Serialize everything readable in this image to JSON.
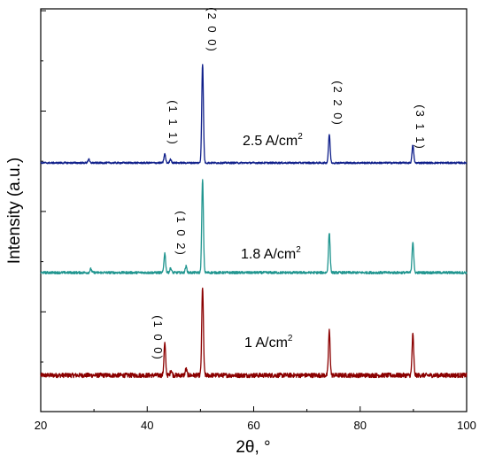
{
  "chart_data": {
    "type": "line",
    "xlabel": "2θ, °",
    "ylabel": "Intensity (a.u.)",
    "xlim": [
      20,
      100
    ],
    "xticks": [
      20,
      40,
      60,
      80,
      100
    ],
    "grid": false,
    "legend": "none",
    "y_tick_count": 8,
    "series": [
      {
        "name": "1 A/cm",
        "name_superscript": "2",
        "color": "#8b0000",
        "offset": 0,
        "peaks": [
          {
            "x": 43.3,
            "y": 36,
            "hkl": "(1 0 0)"
          },
          {
            "x": 44.5,
            "y": 6
          },
          {
            "x": 47.3,
            "y": 7
          },
          {
            "x": 50.4,
            "y": 100
          },
          {
            "x": 74.2,
            "y": 50
          },
          {
            "x": 89.9,
            "y": 46
          }
        ]
      },
      {
        "name": "1.8 A/cm",
        "name_superscript": "2",
        "color": "#20958f",
        "offset": 116,
        "peaks": [
          {
            "x": 29.4,
            "y": 4
          },
          {
            "x": 43.3,
            "y": 22,
            "hkl": "(1 0 2)"
          },
          {
            "x": 44.4,
            "y": 5
          },
          {
            "x": 47.3,
            "y": 7
          },
          {
            "x": 50.4,
            "y": 105
          },
          {
            "x": 74.2,
            "y": 45
          },
          {
            "x": 89.9,
            "y": 35
          }
        ]
      },
      {
        "name": "2.5 A/cm",
        "name_superscript": "2",
        "color": "#0f1f8a",
        "offset": 240,
        "peaks": [
          {
            "x": 29.0,
            "y": 4
          },
          {
            "x": 43.3,
            "y": 10,
            "hkl": "(1 1 1)"
          },
          {
            "x": 44.4,
            "y": 4
          },
          {
            "x": 50.4,
            "y": 112,
            "hkl": "(2 0 0)"
          },
          {
            "x": 74.2,
            "y": 32,
            "hkl": "(2 2 0)"
          },
          {
            "x": 89.9,
            "y": 20,
            "hkl": "(3 1 1)"
          }
        ]
      }
    ],
    "labels": {
      "series_1": "1 A/cm",
      "series_2": "1.8 A/cm",
      "series_3": "2.5 A/cm",
      "sup": "2",
      "hkl_100": "(1 0 0)",
      "hkl_102": "(1 0 2)",
      "hkl_111": "(1 1 1)",
      "hkl_200": "(2 0 0)",
      "hkl_220": "(2 2 0)",
      "hkl_311": "(3 1 1)"
    }
  }
}
